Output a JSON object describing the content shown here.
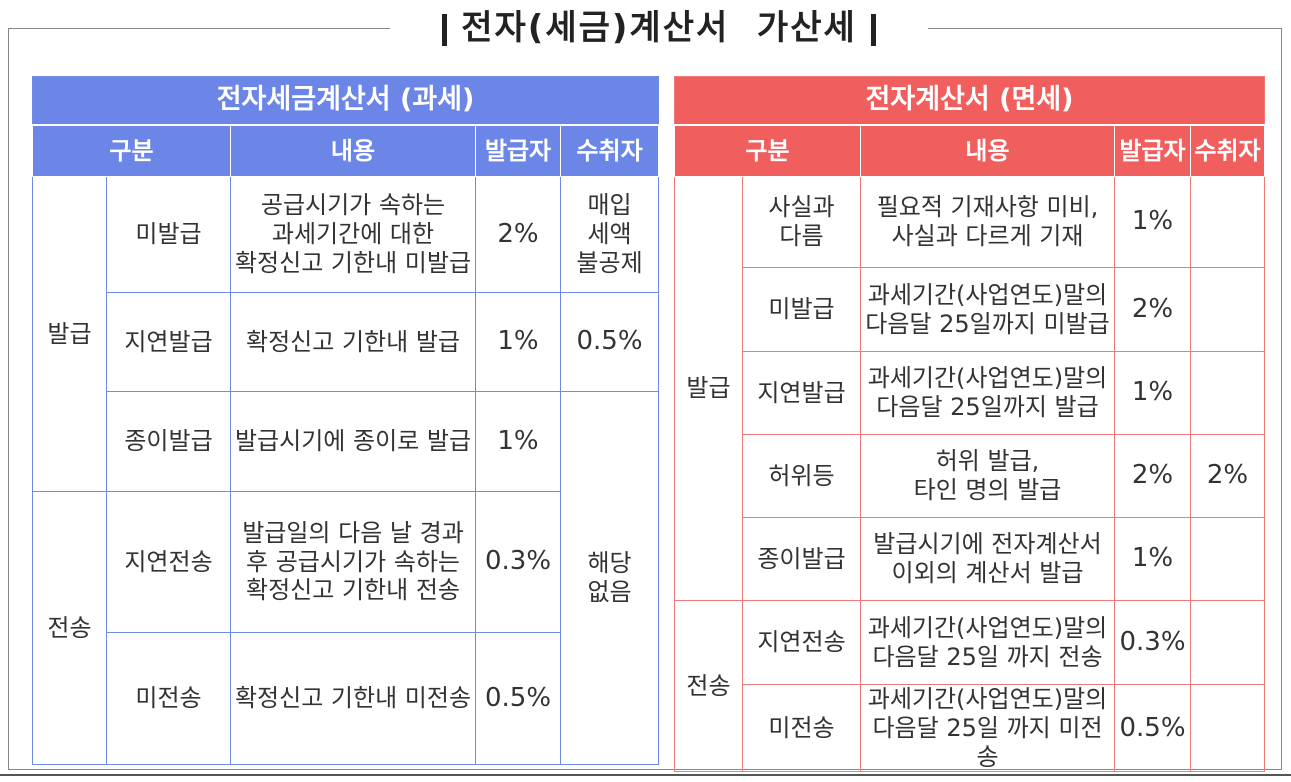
{
  "title": "전자(세금)계산서  가산세",
  "taxable": {
    "caption": "전자세금계산서 (과세)",
    "headers": {
      "category": "구분",
      "content": "내용",
      "issuer": "발급자",
      "recipient": "수취자"
    },
    "groups": {
      "issue": "발급",
      "transmit": "전송"
    },
    "rows": [
      {
        "item": "미발급",
        "content": "공급시기가 속하는\n과세기간에 대한\n확정신고 기한내 미발급",
        "issuer": "2%"
      },
      {
        "item": "지연발급",
        "content": "확정신고 기한내 발급",
        "issuer": "1%"
      },
      {
        "item": "종이발급",
        "content": "발급시기에 종이로 발급",
        "issuer": "1%"
      },
      {
        "item": "지연전송",
        "content": "발급일의 다음 날 경과\n후 공급시기가 속하는\n확정신고 기한내 전송",
        "issuer": "0.3%"
      },
      {
        "item": "미전송",
        "content": "확정신고 기한내 미전송",
        "issuer": "0.5%"
      }
    ],
    "recipient_values": {
      "nondeduct": "매입\n세액\n불공제",
      "late": "0.5%",
      "na": "해당\n없음"
    }
  },
  "exempt": {
    "caption": "전자계산서 (면세)",
    "headers": {
      "category": "구분",
      "content": "내용",
      "issuer": "발급자",
      "recipient": "수취자"
    },
    "groups": {
      "issue": "발급",
      "transmit": "전송"
    },
    "rows": [
      {
        "item": "사실과\n다름",
        "content": "필요적 기재사항 미비,\n사실과 다르게 기재",
        "issuer": "1%",
        "recipient": ""
      },
      {
        "item": "미발급",
        "content": "과세기간(사업연도)말의\n다음달 25일까지 미발급",
        "issuer": "2%",
        "recipient": ""
      },
      {
        "item": "지연발급",
        "content": "과세기간(사업연도)말의\n다음달 25일까지 발급",
        "issuer": "1%",
        "recipient": ""
      },
      {
        "item": "허위등",
        "content": "허위 발급,\n타인 명의 발급",
        "issuer": "2%",
        "recipient": "2%"
      },
      {
        "item": "종이발급",
        "content": "발급시기에 전자계산서\n이외의 계산서 발급",
        "issuer": "1%",
        "recipient": ""
      },
      {
        "item": "지연전송",
        "content": "과세기간(사업연도)말의\n다음달 25일 까지 전송",
        "issuer": "0.3%",
        "recipient": ""
      },
      {
        "item": "미전송",
        "content": "과세기간(사업연도)말의\n다음달 25일 까지 미전송",
        "issuer": "0.5%",
        "recipient": ""
      }
    ]
  }
}
